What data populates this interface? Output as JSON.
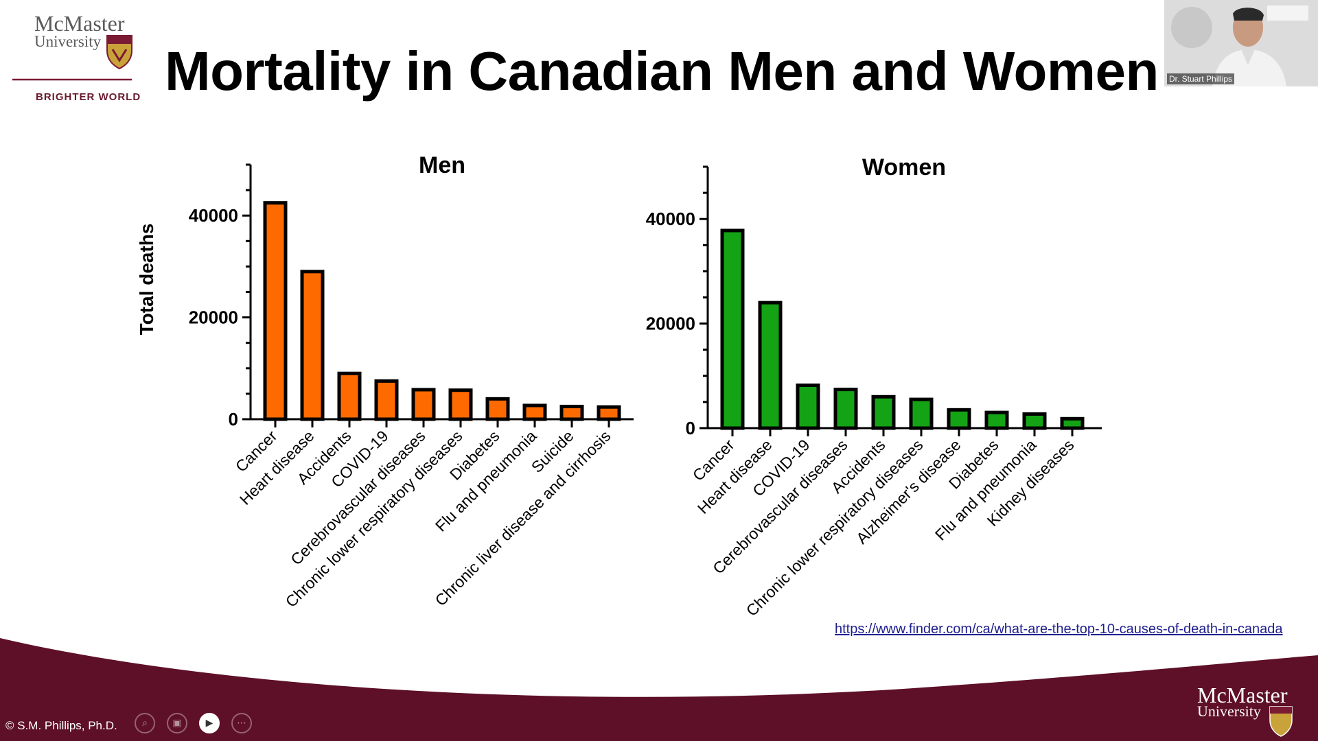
{
  "slide": {
    "title": "Mortality in Canadian Men and Women",
    "logo_top": {
      "line1": "McMaster",
      "line2": "University",
      "tagline": "BRIGHTER WORLD"
    },
    "logo_bottom": {
      "line1": "McMaster",
      "line2": "University"
    },
    "source_link": "https://www.finder.com/ca/what-are-the-top-10-causes-of-death-in-canada",
    "presenter_label": "© S.M. Phillips, Ph.D.",
    "speaker_name": "Dr. Stuart Phillips"
  },
  "colors": {
    "men_bar": "#ff6a00",
    "women_bar": "#14a314",
    "footer_band": "#5e1028",
    "logo_rule": "#7a1a33"
  },
  "icons": [
    "search-icon",
    "screen-icon",
    "camera-icon",
    "more-icon"
  ],
  "chart_data": [
    {
      "type": "bar",
      "title": "Men",
      "ylabel": "Total deaths",
      "xlabel": "",
      "ylim": [
        0,
        50000
      ],
      "yticks": [
        0,
        20000,
        40000
      ],
      "categories": [
        "Cancer",
        "Heart disease",
        "Accidents",
        "COVID-19",
        "Cerebrovascular diseases",
        "Chronic lower respiratory diseases",
        "Diabetes",
        "Flu and pneumonia",
        "Suicide",
        "Chronic liver disease and cirrhosis"
      ],
      "values": [
        42500,
        29000,
        9000,
        7500,
        5800,
        5700,
        4000,
        2700,
        2500,
        2400
      ],
      "grid": false
    },
    {
      "type": "bar",
      "title": "Women",
      "ylabel": "",
      "xlabel": "",
      "ylim": [
        0,
        50000
      ],
      "yticks": [
        0,
        20000,
        40000
      ],
      "categories": [
        "Cancer",
        "Heart disease",
        "COVID-19",
        "Cerebrovascular diseases",
        "Accidents",
        "Chronic lower respiratory diseases",
        "Alzheimer's disease",
        "Diabetes",
        "Flu and pneumonia",
        "Kidney diseases"
      ],
      "values": [
        37800,
        24000,
        8200,
        7400,
        6000,
        5500,
        3500,
        3000,
        2700,
        1800
      ],
      "grid": false
    }
  ]
}
